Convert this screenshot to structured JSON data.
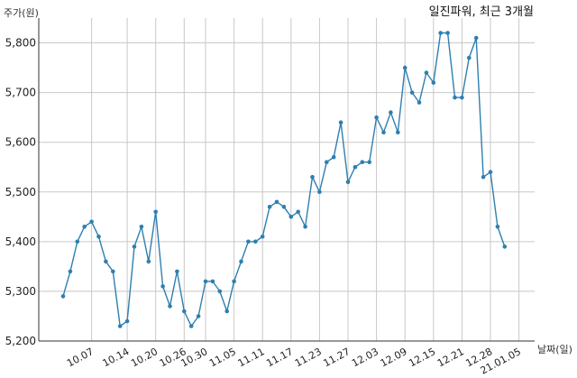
{
  "chart_data": {
    "type": "line",
    "title": "일진파워, 최근 3개월",
    "ylabel": "주가(원)",
    "xlabel": "날짜(일)",
    "ylim": [
      5200,
      5850
    ],
    "yticks": [
      5200,
      5300,
      5400,
      5500,
      5600,
      5700,
      5800
    ],
    "ytick_labels": [
      "5,200",
      "5,300",
      "5,400",
      "5,500",
      "5,600",
      "5,700",
      "5,800"
    ],
    "xtick_labels": [
      "10.07",
      "10.14",
      "10.20",
      "10.26",
      "10.30",
      "11.05",
      "11.11",
      "11.17",
      "11.23",
      "11.27",
      "12.03",
      "12.09",
      "12.15",
      "12.21",
      "12.28",
      "21.01.05"
    ],
    "xtick_index": [
      4,
      9,
      13,
      17,
      20,
      24,
      28,
      32,
      36,
      40,
      44,
      48,
      52,
      56,
      60,
      64
    ],
    "grid": true,
    "color": "#2e7fb0",
    "series": [
      {
        "values": [
          5290,
          5340,
          5400,
          5430,
          5440,
          5410,
          5360,
          5340,
          5230,
          5240,
          5390,
          5430,
          5360,
          5460,
          5310,
          5270,
          5340,
          5260,
          5230,
          5250,
          5320,
          5320,
          5300,
          5260,
          5320,
          5360,
          5400,
          5400,
          5410,
          5470,
          5480,
          5470,
          5450,
          5460,
          5430,
          5530,
          5500,
          5560,
          5570,
          5640,
          5520,
          5550,
          5560,
          5560,
          5650,
          5620,
          5660,
          5620,
          5750,
          5700,
          5680,
          5740,
          5720,
          5820,
          5820,
          5690,
          5690,
          5770,
          5810,
          5530,
          5540,
          5430,
          5390
        ]
      }
    ]
  }
}
